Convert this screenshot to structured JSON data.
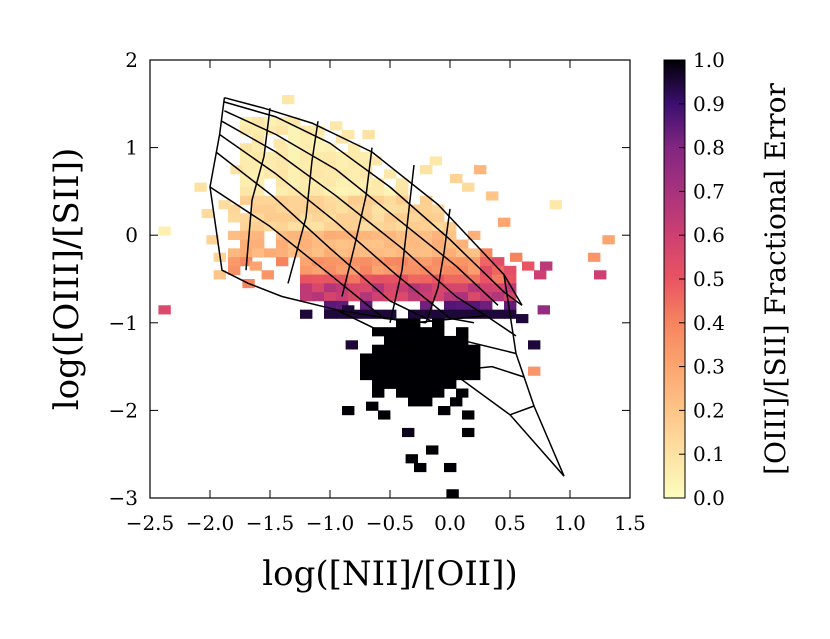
{
  "chart_data": {
    "type": "heatmap",
    "title": "",
    "xlabel": "log([NII]/[OII])",
    "ylabel": "log([OIII]/[SII])",
    "xlim": [
      -2.5,
      1.5
    ],
    "ylim": [
      -3,
      2
    ],
    "xticks": [
      -2.5,
      -2.0,
      -1.5,
      -1.0,
      -0.5,
      0.0,
      0.5,
      1.0,
      1.5
    ],
    "xtick_labels": [
      "−2.5",
      "−2.0",
      "−1.5",
      "−1.0",
      "−0.5",
      "0.0",
      "0.5",
      "1.0",
      "1.5"
    ],
    "yticks": [
      -3,
      -2,
      -1,
      0,
      1,
      2
    ],
    "ytick_labels": [
      "−3",
      "−2",
      "−1",
      "0",
      "1",
      "2"
    ],
    "colorbar": {
      "label": "[OIII]/[SII] Fractional Error",
      "range": [
        0.0,
        1.0
      ],
      "ticks": [
        0.0,
        0.1,
        0.2,
        0.3,
        0.4,
        0.5,
        0.6,
        0.7,
        0.8,
        0.9,
        1.0
      ],
      "tick_labels": [
        "0.0",
        "0.1",
        "0.2",
        "0.3",
        "0.4",
        "0.5",
        "0.6",
        "0.7",
        "0.8",
        "0.9",
        "1.0"
      ],
      "colormap": "magma_r"
    },
    "bin_size": [
      0.1,
      0.1
    ],
    "cells": [
      [
        -2.38,
        0.05,
        0.05
      ],
      [
        -2.38,
        -0.85,
        0.55
      ],
      [
        -2.08,
        0.55,
        0.1
      ],
      [
        -2.02,
        0.25,
        0.12
      ],
      [
        -1.98,
        -0.05,
        0.15
      ],
      [
        -1.92,
        -0.25,
        0.15
      ],
      [
        -1.92,
        -0.45,
        0.2
      ],
      [
        -1.88,
        0.35,
        0.12
      ],
      [
        -1.78,
        0.75,
        0.1
      ],
      [
        -1.72,
        0.15,
        0.15
      ],
      [
        -1.68,
        -0.55,
        0.4
      ],
      [
        -1.62,
        -0.35,
        0.3
      ],
      [
        -1.52,
        -0.45,
        0.35
      ],
      [
        -1.42,
        1.05,
        0.08
      ],
      [
        -1.35,
        1.55,
        0.08
      ],
      [
        -1.3,
        -0.2,
        0.3
      ],
      [
        -0.95,
        1.25,
        0.08
      ],
      [
        -0.85,
        1.15,
        0.08
      ],
      [
        -0.68,
        1.15,
        0.1
      ],
      [
        -0.62,
        0.85,
        0.08
      ],
      [
        -0.2,
        0.75,
        0.1
      ],
      [
        -0.12,
        0.85,
        0.08
      ],
      [
        0.05,
        0.65,
        0.15
      ],
      [
        0.15,
        0.55,
        0.12
      ],
      [
        0.25,
        0.75,
        0.25
      ],
      [
        0.35,
        0.45,
        0.2
      ],
      [
        0.45,
        0.15,
        0.3
      ],
      [
        0.55,
        -0.25,
        0.4
      ],
      [
        0.65,
        -0.35,
        0.5
      ],
      [
        0.75,
        -0.45,
        0.6
      ],
      [
        0.78,
        -0.85,
        0.75
      ],
      [
        0.8,
        -0.35,
        0.65
      ],
      [
        0.88,
        0.35,
        0.08
      ],
      [
        1.2,
        -0.25,
        0.35
      ],
      [
        1.25,
        -0.45,
        0.6
      ],
      [
        1.32,
        -0.05,
        0.3
      ],
      [
        0.7,
        -1.55,
        0.35
      ],
      [
        0.7,
        -1.25,
        0.95
      ],
      [
        0.6,
        -0.95,
        0.95
      ],
      [
        -0.95,
        -0.95,
        0.9
      ],
      [
        -0.85,
        -0.85,
        0.95
      ],
      [
        -0.82,
        -1.25,
        0.95
      ],
      [
        -0.35,
        -2.25,
        0.98
      ],
      [
        -0.32,
        -2.55,
        1.0
      ],
      [
        -0.25,
        -2.65,
        1.0
      ],
      [
        -0.15,
        -2.45,
        1.0
      ],
      [
        0.0,
        -2.65,
        1.0
      ],
      [
        0.02,
        -2.95,
        1.0
      ],
      [
        0.15,
        -2.05,
        1.0
      ],
      [
        0.15,
        -2.25,
        1.0
      ],
      [
        -0.65,
        -1.95,
        1.0
      ],
      [
        -0.55,
        -2.05,
        1.0
      ],
      [
        -0.45,
        -1.85,
        1.0
      ],
      [
        -0.05,
        -2.0,
        1.0
      ],
      [
        0.05,
        -1.9,
        1.0
      ],
      [
        -0.85,
        -2.0,
        1.0
      ]
    ],
    "model_grid": {
      "lines": [
        [
          [
            -1.88,
            1.57
          ],
          [
            -1.55,
            1.45
          ],
          [
            -1.15,
            1.28
          ],
          [
            -0.65,
            0.95
          ],
          [
            -0.1,
            0.35
          ],
          [
            0.45,
            -0.45
          ],
          [
            0.6,
            -0.8
          ]
        ],
        [
          [
            -1.88,
            1.52
          ],
          [
            -1.45,
            1.35
          ],
          [
            -1.0,
            1.05
          ],
          [
            -0.5,
            0.55
          ],
          [
            0.0,
            -0.05
          ],
          [
            0.45,
            -0.65
          ],
          [
            0.6,
            -0.8
          ]
        ],
        [
          [
            -1.88,
            1.42
          ],
          [
            -1.45,
            1.15
          ],
          [
            -0.95,
            0.75
          ],
          [
            -0.45,
            0.2
          ],
          [
            0.05,
            -0.35
          ],
          [
            0.4,
            -0.8
          ]
        ],
        [
          [
            -1.9,
            1.3
          ],
          [
            -1.45,
            0.95
          ],
          [
            -0.95,
            0.45
          ],
          [
            -0.4,
            -0.15
          ],
          [
            0.05,
            -0.7
          ],
          [
            0.3,
            -0.92
          ]
        ],
        [
          [
            -1.92,
            1.15
          ],
          [
            -1.45,
            0.7
          ],
          [
            -0.95,
            0.15
          ],
          [
            -0.45,
            -0.45
          ],
          [
            0.0,
            -0.95
          ],
          [
            0.2,
            -1.0
          ]
        ],
        [
          [
            -1.95,
            0.95
          ],
          [
            -1.48,
            0.45
          ],
          [
            -1.0,
            -0.15
          ],
          [
            -0.5,
            -0.75
          ],
          [
            -0.05,
            -1.05
          ]
        ],
        [
          [
            -2.0,
            0.55
          ],
          [
            -1.5,
            0.1
          ],
          [
            -1.0,
            -0.45
          ],
          [
            -0.55,
            -0.95
          ],
          [
            -0.2,
            -1.0
          ]
        ],
        [
          [
            -1.88,
            1.57
          ],
          [
            -1.92,
            1.15
          ],
          [
            -2.0,
            0.55
          ],
          [
            -1.9,
            -0.4
          ],
          [
            -1.68,
            -0.55
          ],
          [
            -1.4,
            -0.7
          ],
          [
            -0.95,
            -0.85
          ],
          [
            -0.5,
            -1.15
          ],
          [
            0.0,
            -1.55
          ],
          [
            0.5,
            -2.05
          ],
          [
            0.95,
            -2.75
          ]
        ],
        [
          [
            -1.5,
            1.45
          ],
          [
            -1.55,
            0.9
          ],
          [
            -1.65,
            0.4
          ],
          [
            -1.7,
            -0.4
          ]
        ],
        [
          [
            -1.1,
            1.3
          ],
          [
            -1.15,
            0.85
          ],
          [
            -1.2,
            0.2
          ],
          [
            -1.35,
            -0.55
          ]
        ],
        [
          [
            -0.65,
            1.0
          ],
          [
            -0.7,
            0.45
          ],
          [
            -0.8,
            -0.15
          ],
          [
            -0.9,
            -0.7
          ]
        ],
        [
          [
            -0.3,
            0.8
          ],
          [
            -0.35,
            0.2
          ],
          [
            -0.4,
            -0.4
          ],
          [
            -0.5,
            -1.0
          ]
        ],
        [
          [
            0.0,
            0.3
          ],
          [
            -0.05,
            -0.2
          ],
          [
            -0.1,
            -0.6
          ],
          [
            -0.2,
            -1.0
          ]
        ],
        [
          [
            0.45,
            -0.45
          ],
          [
            0.5,
            -0.9
          ],
          [
            0.55,
            -1.35
          ],
          [
            0.7,
            -1.95
          ],
          [
            0.95,
            -2.75
          ]
        ],
        [
          [
            -0.95,
            -0.85
          ],
          [
            -0.3,
            -1.0
          ],
          [
            0.3,
            -0.92
          ],
          [
            0.55,
            -1.15
          ]
        ],
        [
          [
            -0.5,
            -1.15
          ],
          [
            0.1,
            -1.2
          ],
          [
            0.55,
            -1.35
          ]
        ],
        [
          [
            0.0,
            -1.55
          ],
          [
            0.35,
            -1.5
          ],
          [
            0.62,
            -1.62
          ]
        ],
        [
          [
            0.5,
            -2.05
          ],
          [
            0.7,
            -1.95
          ]
        ]
      ]
    }
  }
}
